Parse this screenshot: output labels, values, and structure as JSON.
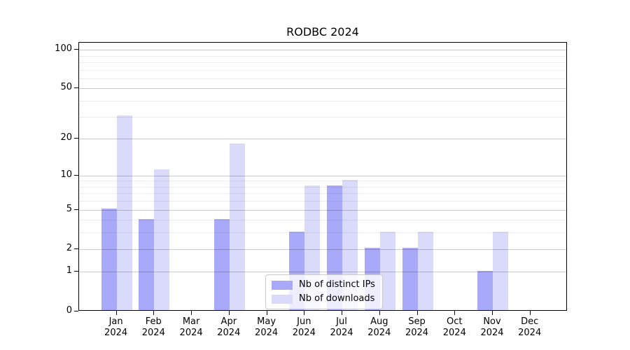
{
  "title": "RODBC 2024",
  "chart_data": {
    "type": "bar",
    "title": "RODBC 2024",
    "categories": [
      "Jan 2024",
      "Feb 2024",
      "Mar 2024",
      "Apr 2024",
      "May 2024",
      "Jun 2024",
      "Jul 2024",
      "Aug 2024",
      "Sep 2024",
      "Oct 2024",
      "Nov 2024",
      "Dec 2024"
    ],
    "series": [
      {
        "name": "Nb of distinct IPs",
        "color": "#a9a9fa",
        "values": [
          5,
          4,
          0,
          4,
          0,
          3,
          8,
          2,
          2,
          0,
          1,
          0
        ]
      },
      {
        "name": "Nb of downloads",
        "color": "#dadafa",
        "values": [
          30,
          11,
          0,
          18,
          0,
          8,
          9,
          3,
          3,
          0,
          3,
          0
        ]
      }
    ],
    "y_axis": {
      "scale": "log10(v+1)",
      "ticks": [
        100,
        50,
        20,
        10,
        5,
        2,
        1,
        0
      ],
      "range": [
        0,
        100
      ]
    },
    "x_axis": {
      "ticks_at_category_centers": true
    },
    "gridlines": {
      "major": [
        100,
        50,
        20,
        10,
        5,
        2,
        1
      ],
      "minor": [
        90,
        80,
        70,
        60,
        40,
        30,
        9,
        8,
        7,
        6,
        4,
        3
      ]
    },
    "legend": {
      "entries": [
        "Nb of distinct IPs",
        "Nb of downloads"
      ],
      "position": "bottom-center"
    }
  },
  "colors": {
    "background": "#ffffff",
    "axis": "#000000",
    "bar_distinct_ips": "#a9a9fa",
    "bar_downloads": "#dadafa",
    "legend_border": "#cccccc"
  }
}
